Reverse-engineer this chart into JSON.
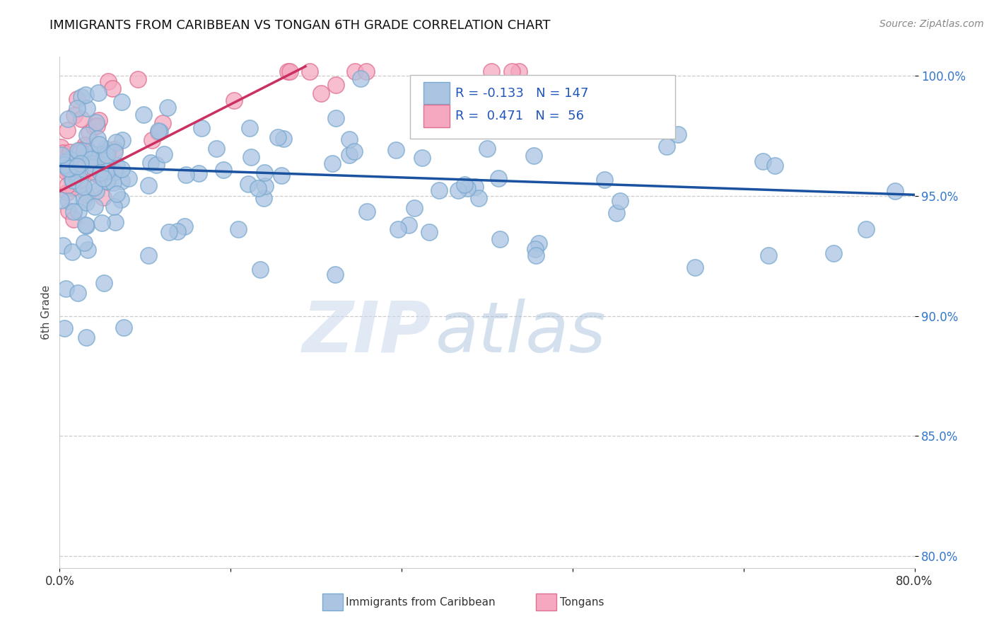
{
  "title": "IMMIGRANTS FROM CARIBBEAN VS TONGAN 6TH GRADE CORRELATION CHART",
  "source": "Source: ZipAtlas.com",
  "ylabel": "6th Grade",
  "xlim": [
    0.0,
    0.8
  ],
  "ylim": [
    0.795,
    1.008
  ],
  "yticks": [
    0.8,
    0.85,
    0.9,
    0.95,
    1.0
  ],
  "ytick_labels": [
    "80.0%",
    "85.0%",
    "90.0%",
    "95.0%",
    "100.0%"
  ],
  "blue_color": "#aac4e2",
  "blue_edge_color": "#7aaad0",
  "pink_color": "#f5a8c0",
  "pink_edge_color": "#e07090",
  "blue_line_color": "#1a52a0",
  "pink_line_color": "#cc3060",
  "legend_blue_label": "Immigrants from Caribbean",
  "legend_pink_label": "Tongans",
  "R_blue": -0.133,
  "N_blue": 147,
  "R_pink": 0.471,
  "N_pink": 56,
  "watermark_zip": "ZIP",
  "watermark_atlas": "atlas",
  "blue_trend_x": [
    0.0,
    0.8
  ],
  "blue_trend_y": [
    0.9625,
    0.9505
  ],
  "pink_trend_x": [
    0.0,
    0.23
  ],
  "pink_trend_y": [
    0.952,
    1.004
  ]
}
